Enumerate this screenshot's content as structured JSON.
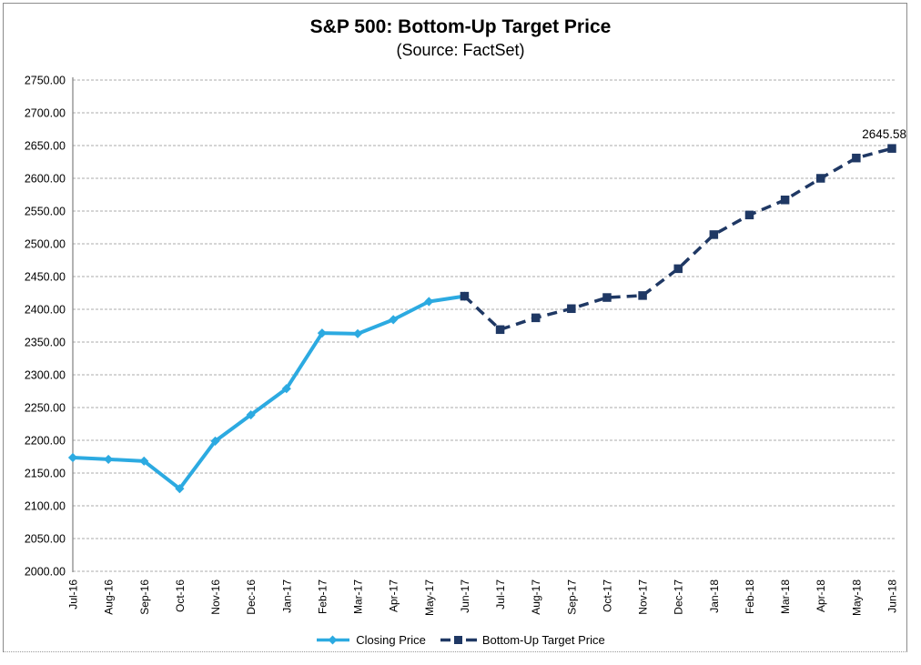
{
  "chart_data": {
    "type": "line",
    "title": "S&P 500: Bottom-Up Target Price",
    "subtitle": "(Source: FactSet)",
    "categories": [
      "Jul-16",
      "Aug-16",
      "Sep-16",
      "Oct-16",
      "Nov-16",
      "Dec-16",
      "Jan-17",
      "Feb-17",
      "Mar-17",
      "Apr-17",
      "May-17",
      "Jun-17",
      "Jul-17",
      "Aug-17",
      "Sep-17",
      "Oct-17",
      "Nov-17",
      "Dec-17",
      "Jan-18",
      "Feb-18",
      "Mar-18",
      "Apr-18",
      "May-18",
      "Jun-18"
    ],
    "series": [
      {
        "name": "Closing Price",
        "color": "#2CAAE1",
        "style": "solid",
        "marker": "diamond",
        "start_index": 0,
        "values": [
          2173.6,
          2170.95,
          2168.27,
          2126.15,
          2198.81,
          2238.83,
          2278.87,
          2363.64,
          2362.72,
          2384.2,
          2411.8,
          2420.0
        ]
      },
      {
        "name": "Bottom-Up Target Price",
        "color": "#1F3864",
        "style": "dashed",
        "marker": "square",
        "start_index": 11,
        "values": [
          2420.0,
          2369.0,
          2387.0,
          2401.0,
          2418.0,
          2421.0,
          2462.0,
          2514.0,
          2544.0,
          2567.0,
          2600.0,
          2631.0,
          2645.58
        ]
      }
    ],
    "annotation": {
      "text": "2645.58",
      "category": "Jun-18"
    },
    "ylim": [
      2000,
      2750
    ],
    "ytick_step": 50,
    "yticks": [
      "2000.00",
      "2050.00",
      "2100.00",
      "2150.00",
      "2200.00",
      "2250.00",
      "2300.00",
      "2350.00",
      "2400.00",
      "2450.00",
      "2500.00",
      "2550.00",
      "2600.00",
      "2650.00",
      "2700.00",
      "2750.00"
    ],
    "grid": "horizontal-dotted",
    "legend_position": "bottom-center",
    "colors": {
      "closing_price": "#2CAAE1",
      "target_price": "#1F3864",
      "gridline": "#ABABAB",
      "axis": "#808080",
      "frame_border": "#8C8C8C",
      "text": "#000000"
    }
  }
}
